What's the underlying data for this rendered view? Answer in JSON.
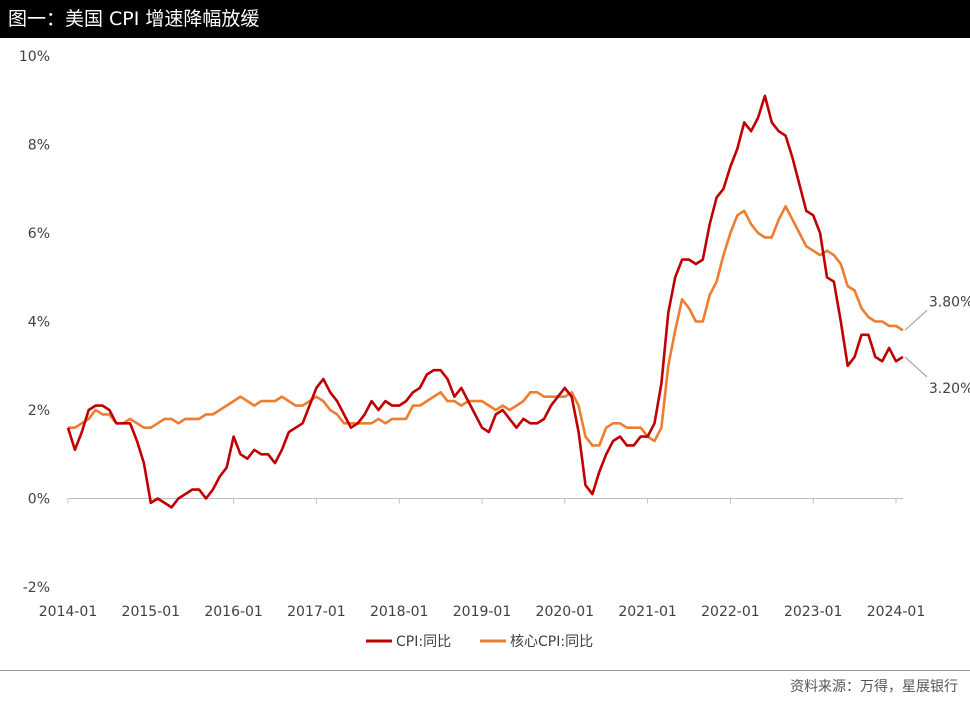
{
  "header": {
    "title": "图一：美国 CPI 增速降幅放缓"
  },
  "footer": {
    "source": "资料来源：万得，星展银行"
  },
  "chart_data": {
    "type": "line",
    "title": "图一：美国 CPI 增速降幅放缓",
    "xlabel": "",
    "ylabel": "",
    "x_start": "2014-01",
    "x_ticks": [
      "2014-01",
      "2015-01",
      "2016-01",
      "2017-01",
      "2018-01",
      "2019-01",
      "2020-01",
      "2021-01",
      "2022-01",
      "2023-01",
      "2024-01"
    ],
    "y_ticks": [
      "-2%",
      "0%",
      "2%",
      "4%",
      "6%",
      "8%",
      "10%"
    ],
    "ylim": [
      -2,
      10
    ],
    "grid": false,
    "legend_position": "bottom",
    "series": [
      {
        "name": "CPI:同比",
        "color": "#c00000",
        "values": [
          1.6,
          1.1,
          1.5,
          2.0,
          2.1,
          2.1,
          2.0,
          1.7,
          1.7,
          1.7,
          1.3,
          0.8,
          -0.1,
          0.0,
          -0.1,
          -0.2,
          0.0,
          0.1,
          0.2,
          0.2,
          0.0,
          0.2,
          0.5,
          0.7,
          1.4,
          1.0,
          0.9,
          1.1,
          1.0,
          1.0,
          0.8,
          1.1,
          1.5,
          1.6,
          1.7,
          2.1,
          2.5,
          2.7,
          2.4,
          2.2,
          1.9,
          1.6,
          1.7,
          1.9,
          2.2,
          2.0,
          2.2,
          2.1,
          2.1,
          2.2,
          2.4,
          2.5,
          2.8,
          2.9,
          2.9,
          2.7,
          2.3,
          2.5,
          2.2,
          1.9,
          1.6,
          1.5,
          1.9,
          2.0,
          1.8,
          1.6,
          1.8,
          1.7,
          1.7,
          1.8,
          2.1,
          2.3,
          2.5,
          2.3,
          1.5,
          0.3,
          0.1,
          0.6,
          1.0,
          1.3,
          1.4,
          1.2,
          1.2,
          1.4,
          1.4,
          1.7,
          2.6,
          4.2,
          5.0,
          5.4,
          5.4,
          5.3,
          5.4,
          6.2,
          6.8,
          7.0,
          7.5,
          7.9,
          8.5,
          8.3,
          8.6,
          9.1,
          8.5,
          8.3,
          8.2,
          7.7,
          7.1,
          6.5,
          6.4,
          6.0,
          5.0,
          4.9,
          4.0,
          3.0,
          3.2,
          3.7,
          3.7,
          3.2,
          3.1,
          3.4,
          3.1,
          3.2
        ]
      },
      {
        "name": "核心CPI:同比",
        "color": "#ed7d31",
        "values": [
          1.6,
          1.6,
          1.7,
          1.8,
          2.0,
          1.9,
          1.9,
          1.7,
          1.7,
          1.8,
          1.7,
          1.6,
          1.6,
          1.7,
          1.8,
          1.8,
          1.7,
          1.8,
          1.8,
          1.8,
          1.9,
          1.9,
          2.0,
          2.1,
          2.2,
          2.3,
          2.2,
          2.1,
          2.2,
          2.2,
          2.2,
          2.3,
          2.2,
          2.1,
          2.1,
          2.2,
          2.3,
          2.2,
          2.0,
          1.9,
          1.7,
          1.7,
          1.7,
          1.7,
          1.7,
          1.8,
          1.7,
          1.8,
          1.8,
          1.8,
          2.1,
          2.1,
          2.2,
          2.3,
          2.4,
          2.2,
          2.2,
          2.1,
          2.2,
          2.2,
          2.2,
          2.1,
          2.0,
          2.1,
          2.0,
          2.1,
          2.2,
          2.4,
          2.4,
          2.3,
          2.3,
          2.3,
          2.3,
          2.4,
          2.1,
          1.4,
          1.2,
          1.2,
          1.6,
          1.7,
          1.7,
          1.6,
          1.6,
          1.6,
          1.4,
          1.3,
          1.6,
          3.0,
          3.8,
          4.5,
          4.3,
          4.0,
          4.0,
          4.6,
          4.9,
          5.5,
          6.0,
          6.4,
          6.5,
          6.2,
          6.0,
          5.9,
          5.9,
          6.3,
          6.6,
          6.3,
          6.0,
          5.7,
          5.6,
          5.5,
          5.6,
          5.5,
          5.3,
          4.8,
          4.7,
          4.3,
          4.1,
          4.0,
          4.0,
          3.9,
          3.9,
          3.8
        ]
      }
    ],
    "annotations": [
      {
        "text": "3.80%",
        "series": "核心CPI:同比",
        "x": "2024-02",
        "y": 3.8
      },
      {
        "text": "3.20%",
        "series": "CPI:同比",
        "x": "2024-02",
        "y": 3.2
      }
    ]
  }
}
